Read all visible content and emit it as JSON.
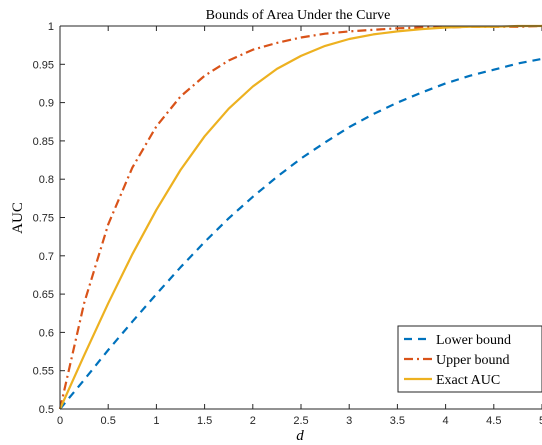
{
  "chart_data": {
    "type": "line",
    "title": "Bounds of Area Under the Curve",
    "xlabel": "d",
    "ylabel": "AUC",
    "xlim": [
      0,
      5
    ],
    "ylim": [
      0.5,
      1
    ],
    "xticks": [
      "0",
      "0.5",
      "1",
      "1.5",
      "2",
      "2.5",
      "3",
      "3.5",
      "4",
      "4.5",
      "5"
    ],
    "yticks": [
      "0.5",
      "0.55",
      "0.6",
      "0.65",
      "0.7",
      "0.75",
      "0.8",
      "0.85",
      "0.9",
      "0.95",
      "1"
    ],
    "grid": false,
    "legend_position": "bottom-right",
    "x": [
      0,
      0.25,
      0.5,
      0.75,
      1,
      1.25,
      1.5,
      1.75,
      2,
      2.25,
      2.5,
      2.75,
      3,
      3.25,
      3.5,
      3.75,
      4,
      4.25,
      4.5,
      4.75,
      5
    ],
    "series": [
      {
        "name": "Lower bound",
        "style": "dashed",
        "color": "#0072BD",
        "values": [
          0.5,
          0.538,
          0.577,
          0.614,
          0.65,
          0.685,
          0.718,
          0.749,
          0.777,
          0.803,
          0.827,
          0.848,
          0.868,
          0.885,
          0.9,
          0.913,
          0.925,
          0.935,
          0.943,
          0.951,
          0.957
        ]
      },
      {
        "name": "Upper bound",
        "style": "dash-dot",
        "color": "#D95319",
        "values": [
          0.5,
          0.638,
          0.741,
          0.815,
          0.869,
          0.908,
          0.935,
          0.955,
          0.969,
          0.978,
          0.985,
          0.99,
          0.993,
          0.995,
          0.997,
          0.998,
          0.998,
          0.999,
          0.999,
          0.999,
          1.0
        ]
      },
      {
        "name": "Exact AUC",
        "style": "solid",
        "color": "#EDB120",
        "values": [
          0.5,
          0.57,
          0.638,
          0.702,
          0.76,
          0.812,
          0.856,
          0.892,
          0.921,
          0.944,
          0.961,
          0.974,
          0.983,
          0.989,
          0.993,
          0.996,
          0.998,
          0.999,
          0.999,
          1.0,
          1.0
        ]
      }
    ]
  }
}
